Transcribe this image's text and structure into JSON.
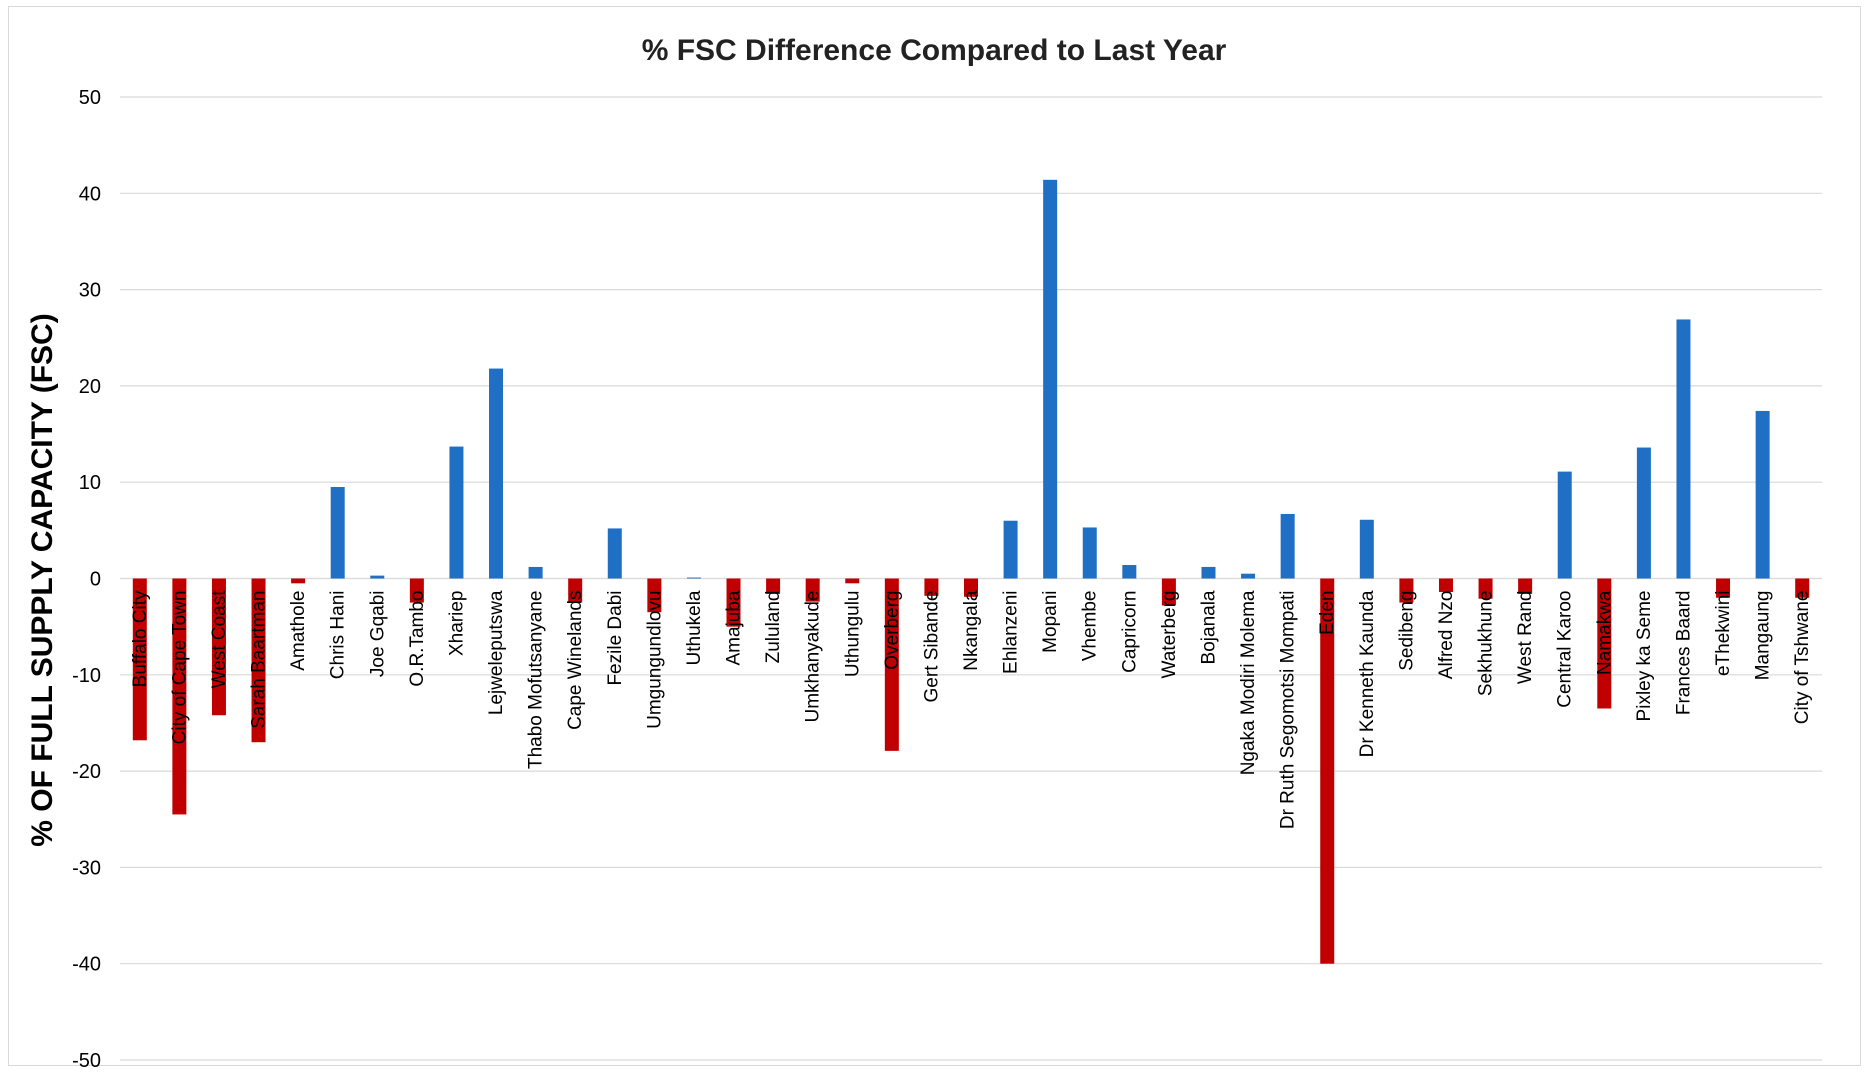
{
  "chart_data": {
    "type": "bar",
    "title": "% FSC Difference Compared to Last Year",
    "xlabel": "",
    "ylabel": "% OF FULL SUPPLY CAPACITY (FSC)",
    "ylim": [
      -50,
      50
    ],
    "yticks": [
      "50",
      "40",
      "30",
      "20",
      "10",
      "0",
      "-10",
      "-20",
      "-30",
      "-40",
      "-50"
    ],
    "grid": true,
    "colors": {
      "positive": "#1f6fc5",
      "negative": "#c00000"
    },
    "categories": [
      "Buffalo City",
      "City of Cape Town",
      "West Coast",
      "Sarah Baartman",
      "Amathole",
      "Chris Hani",
      "Joe Gqabi",
      "O.R.Tambo",
      "Xhariep",
      "Lejweleputswa",
      "Thabo Mofutsanyane",
      "Cape Winelands",
      "Fezile Dabi",
      "Umgungundlovu",
      "Uthukela",
      "Amajuba",
      "Zululand",
      "Umkhanyakude",
      "Uthungulu",
      "Overberg",
      "Gert Sibande",
      "Nkangala",
      "Ehlanzeni",
      "Mopani",
      "Vhembe",
      "Capricorn",
      "Waterberg",
      "Bojanala",
      "Ngaka Modiri Molema",
      "Dr Ruth Segomotsi Mompati",
      "Eden",
      "Dr Kenneth Kaunda",
      "Sedibeng",
      "Alfred Nzo",
      "Sekhukhune",
      "West Rand",
      "Central Karoo",
      "Namakwa",
      "Pixley ka Seme",
      "Frances Baard",
      "eThekwini",
      "Mangaung",
      "City of Tshwane"
    ],
    "values": [
      -16.8,
      -24.5,
      -14.2,
      -17.0,
      -0.5,
      9.5,
      0.3,
      -2.5,
      13.7,
      21.8,
      1.2,
      -2.5,
      5.2,
      -3.5,
      0.1,
      -5.0,
      -1.6,
      -2.4,
      -0.5,
      -17.9,
      -1.8,
      -1.9,
      6.0,
      41.4,
      5.3,
      1.4,
      -2.8,
      1.2,
      0.5,
      6.7,
      -40.0,
      6.1,
      -2.5,
      -1.4,
      -2.1,
      -1.6,
      11.1,
      -13.5,
      13.6,
      26.9,
      -2.0,
      17.4,
      -2.0
    ]
  }
}
